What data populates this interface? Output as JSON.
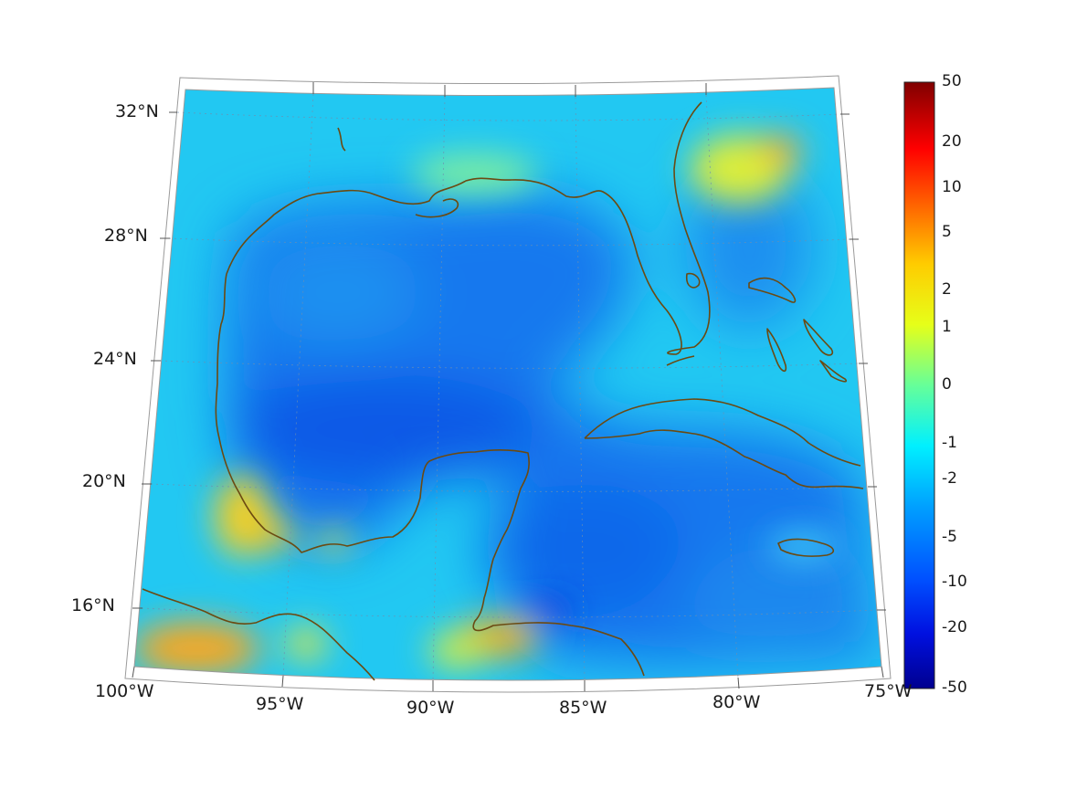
{
  "map": {
    "type": "field-map",
    "projection": "conic",
    "region": "Gulf of Mexico and Caribbean",
    "lon_range": [
      -100,
      -75
    ],
    "lat_range": [
      14,
      32
    ],
    "lat_labels": [
      "32°N",
      "28°N",
      "24°N",
      "20°N",
      "16°N"
    ],
    "lon_labels": [
      "100°W",
      "95°W",
      "90°W",
      "85°W",
      "80°W",
      "75°W"
    ],
    "coastline_color": "#6b4a12",
    "grid": true
  },
  "colorbar": {
    "colormap": "jet",
    "labels": [
      "50",
      "20",
      "10",
      "5",
      "2",
      "1",
      "0",
      "-1",
      "-2",
      "-5",
      "-10",
      "-20",
      "-50"
    ],
    "min_color": "#00008f",
    "max_color": "#800000"
  }
}
